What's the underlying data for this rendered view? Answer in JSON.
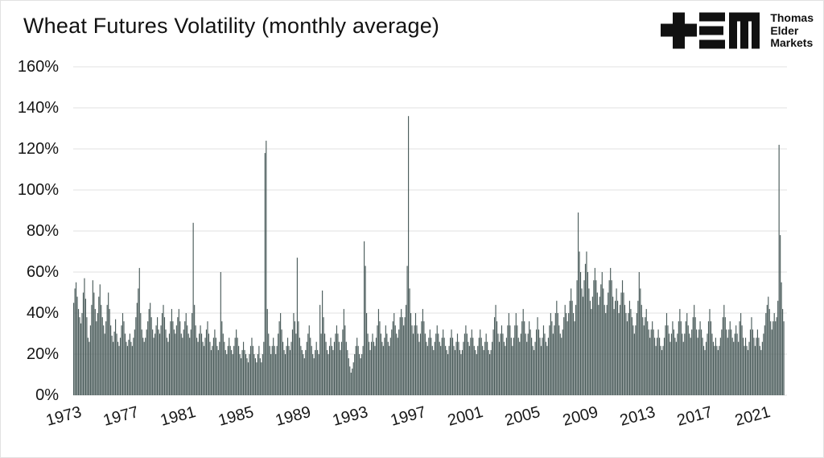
{
  "title": "Wheat Futures Volatility (monthly average)",
  "logo": {
    "lines": [
      "Thomas",
      "Elder",
      "Markets"
    ]
  },
  "colors": {
    "bar": "#4c5d5c",
    "grid": "#e0e0e0",
    "text": "#161616",
    "logo": "#111111",
    "background": "#ffffff"
  },
  "chart_data": {
    "type": "bar",
    "title": "Wheat Futures Volatility (monthly average)",
    "xlabel": "",
    "ylabel": "",
    "y_unit": "%",
    "ylim": [
      0,
      160
    ],
    "grid": "horizontal",
    "legend": "none",
    "frequency": "monthly",
    "x_start": "1973-01",
    "x_end": "2022-07",
    "start_year": 1973,
    "y_ticks": [
      0,
      20,
      40,
      60,
      80,
      100,
      120,
      140,
      160
    ],
    "y_tick_labels": [
      "0%",
      "20%",
      "40%",
      "60%",
      "80%",
      "100%",
      "120%",
      "140%",
      "160%"
    ],
    "x_ticks": [
      1973,
      1977,
      1981,
      1985,
      1989,
      1993,
      1997,
      2001,
      2005,
      2009,
      2013,
      2017,
      2021
    ],
    "x_tick_labels": [
      "1973",
      "1977",
      "1981",
      "1985",
      "1989",
      "1993",
      "1997",
      "2001",
      "2005",
      "2009",
      "2013",
      "2017",
      "2021"
    ],
    "notable_points": [
      {
        "date": "1977-08",
        "value": 62
      },
      {
        "date": "1981-05",
        "value": 84
      },
      {
        "date": "1983-04",
        "value": 60
      },
      {
        "date": "1986-05",
        "value": 118
      },
      {
        "date": "1986-06",
        "value": 124
      },
      {
        "date": "1988-08",
        "value": 67
      },
      {
        "date": "1990-05",
        "value": 51
      },
      {
        "date": "1993-04",
        "value": 75
      },
      {
        "date": "1996-05",
        "value": 136
      },
      {
        "date": "2008-03",
        "value": 89
      },
      {
        "date": "2022-03",
        "value": 122
      }
    ],
    "values": [
      45,
      52,
      55,
      48,
      42,
      38,
      35,
      40,
      50,
      57,
      47,
      38,
      28,
      26,
      34,
      44,
      56,
      50,
      42,
      36,
      40,
      48,
      54,
      44,
      38,
      34,
      30,
      36,
      44,
      50,
      42,
      34,
      29,
      26,
      31,
      37,
      30,
      26,
      24,
      28,
      34,
      40,
      36,
      30,
      26,
      24,
      27,
      30,
      26,
      24,
      28,
      32,
      38,
      45,
      52,
      62,
      40,
      32,
      28,
      26,
      28,
      32,
      36,
      42,
      45,
      38,
      32,
      28,
      30,
      34,
      38,
      32,
      30,
      34,
      40,
      44,
      38,
      32,
      28,
      26,
      30,
      36,
      42,
      36,
      32,
      30,
      34,
      38,
      42,
      36,
      30,
      28,
      32,
      36,
      40,
      34,
      30,
      28,
      32,
      40,
      84,
      44,
      34,
      28,
      26,
      30,
      34,
      30,
      26,
      24,
      28,
      32,
      36,
      30,
      26,
      22,
      24,
      28,
      32,
      28,
      24,
      22,
      26,
      60,
      36,
      30,
      26,
      22,
      20,
      24,
      28,
      24,
      22,
      20,
      24,
      28,
      32,
      28,
      24,
      20,
      18,
      22,
      26,
      22,
      20,
      18,
      16,
      20,
      24,
      28,
      24,
      20,
      18,
      16,
      20,
      24,
      18,
      16,
      20,
      26,
      118,
      124,
      42,
      30,
      24,
      20,
      24,
      28,
      24,
      20,
      24,
      30,
      36,
      40,
      32,
      26,
      22,
      20,
      24,
      28,
      24,
      22,
      26,
      32,
      40,
      36,
      30,
      67,
      36,
      28,
      24,
      22,
      20,
      18,
      22,
      26,
      30,
      34,
      28,
      24,
      20,
      18,
      22,
      26,
      22,
      20,
      44,
      30,
      51,
      38,
      30,
      26,
      22,
      20,
      24,
      28,
      24,
      22,
      26,
      30,
      34,
      30,
      26,
      22,
      26,
      32,
      42,
      34,
      26,
      22,
      18,
      14,
      11,
      13,
      16,
      20,
      24,
      28,
      24,
      20,
      18,
      20,
      24,
      75,
      63,
      40,
      30,
      26,
      22,
      26,
      30,
      26,
      24,
      28,
      34,
      42,
      36,
      30,
      26,
      24,
      28,
      34,
      30,
      26,
      24,
      28,
      32,
      36,
      40,
      34,
      30,
      28,
      32,
      38,
      42,
      38,
      34,
      38,
      44,
      63,
      136,
      52,
      40,
      34,
      30,
      34,
      40,
      34,
      30,
      26,
      30,
      36,
      42,
      36,
      30,
      26,
      24,
      28,
      32,
      28,
      24,
      22,
      26,
      30,
      34,
      30,
      26,
      24,
      28,
      32,
      28,
      24,
      22,
      20,
      24,
      28,
      32,
      28,
      24,
      22,
      26,
      30,
      26,
      22,
      20,
      22,
      26,
      30,
      34,
      30,
      26,
      24,
      28,
      32,
      28,
      24,
      22,
      20,
      24,
      28,
      32,
      28,
      24,
      22,
      26,
      30,
      26,
      22,
      20,
      22,
      26,
      32,
      38,
      44,
      36,
      30,
      26,
      30,
      34,
      30,
      26,
      24,
      28,
      34,
      40,
      34,
      28,
      24,
      28,
      34,
      40,
      34,
      28,
      26,
      30,
      36,
      42,
      36,
      30,
      26,
      30,
      36,
      32,
      28,
      24,
      22,
      26,
      32,
      38,
      32,
      28,
      24,
      28,
      34,
      30,
      26,
      24,
      28,
      34,
      40,
      36,
      30,
      34,
      40,
      46,
      40,
      34,
      30,
      28,
      32,
      38,
      44,
      40,
      36,
      40,
      46,
      52,
      46,
      40,
      36,
      44,
      56,
      89,
      70,
      60,
      52,
      48,
      56,
      64,
      70,
      60,
      52,
      46,
      42,
      48,
      56,
      62,
      56,
      50,
      44,
      48,
      54,
      60,
      52,
      44,
      40,
      44,
      50,
      56,
      62,
      56,
      48,
      42,
      46,
      52,
      46,
      40,
      44,
      50,
      56,
      50,
      44,
      40,
      36,
      40,
      46,
      42,
      38,
      34,
      30,
      34,
      40,
      46,
      60,
      52,
      44,
      38,
      34,
      38,
      42,
      36,
      32,
      28,
      32,
      36,
      32,
      28,
      24,
      28,
      32,
      28,
      24,
      22,
      24,
      28,
      34,
      40,
      34,
      30,
      26,
      30,
      36,
      32,
      28,
      26,
      30,
      36,
      42,
      36,
      30,
      26,
      30,
      36,
      40,
      34,
      30,
      28,
      32,
      38,
      44,
      38,
      32,
      28,
      32,
      36,
      32,
      28,
      24,
      22,
      26,
      30,
      36,
      42,
      36,
      30,
      26,
      24,
      28,
      24,
      22,
      24,
      28,
      32,
      38,
      44,
      38,
      32,
      28,
      32,
      36,
      32,
      28,
      26,
      30,
      34,
      30,
      26,
      36,
      40,
      34,
      28,
      24,
      28,
      24,
      22,
      26,
      32,
      38,
      32,
      28,
      24,
      28,
      32,
      28,
      24,
      22,
      26,
      30,
      34,
      40,
      44,
      48,
      42,
      36,
      32,
      36,
      40,
      36,
      38,
      46,
      122,
      78,
      55,
      42,
      36
    ]
  }
}
